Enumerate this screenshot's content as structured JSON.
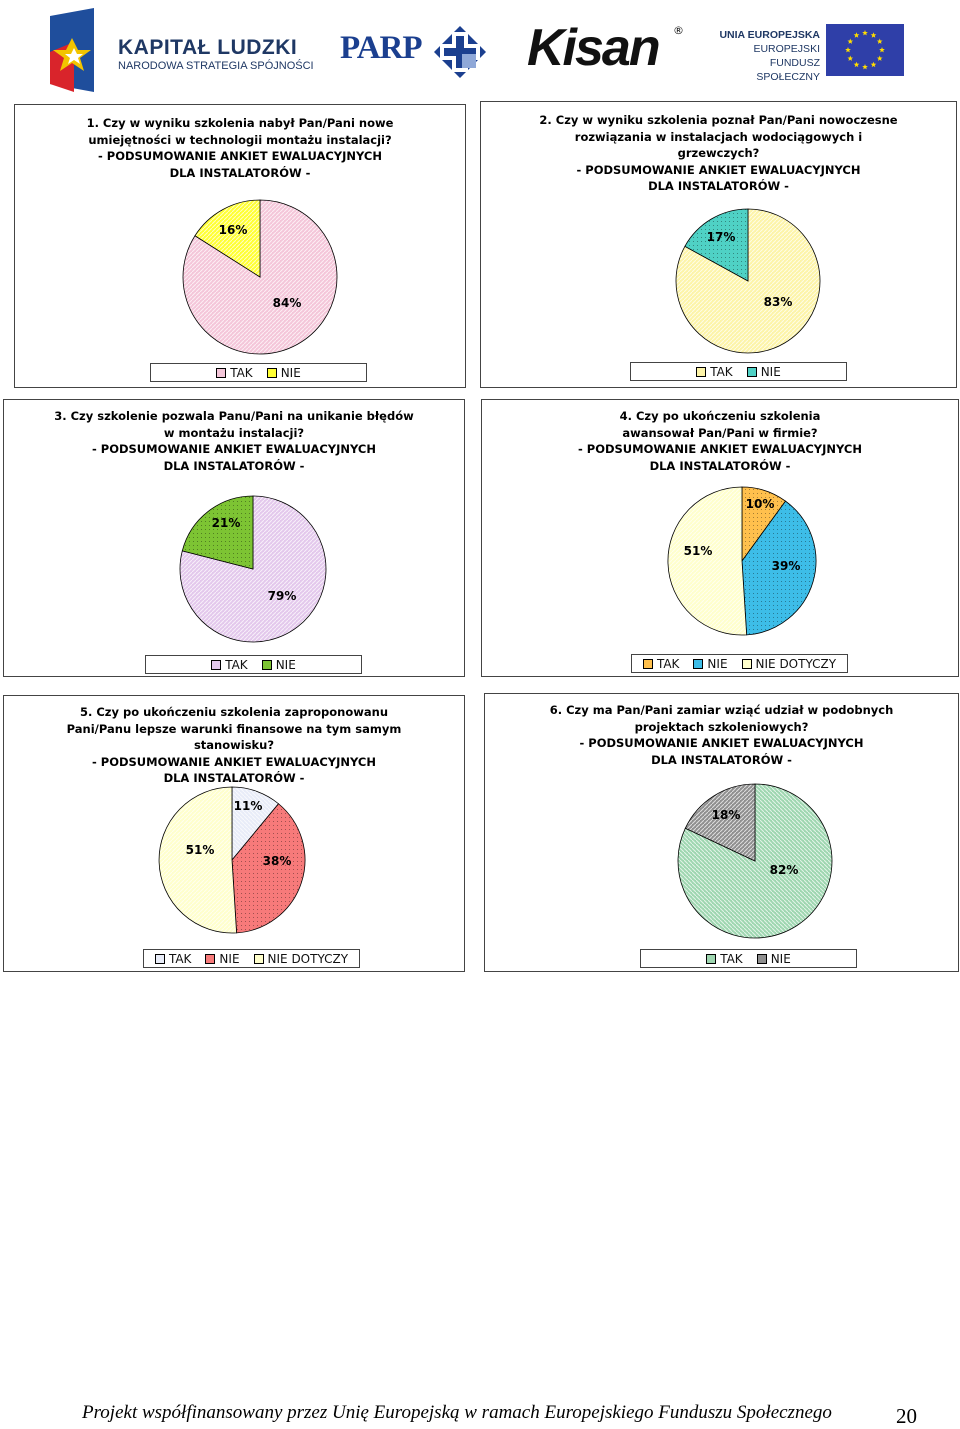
{
  "header": {
    "kl_title": "KAPITAŁ LUDZKI",
    "kl_subtitle": "NARODOWA STRATEGIA SPÓJNOŚCI",
    "parp": "PARP",
    "kisan": "Kisan",
    "kisan_mark": "®",
    "ue_line1": "UNIA EUROPEJSKA",
    "ue_line2": "EUROPEJSKI",
    "ue_line3": "FUNDUSZ SPOŁECZNY"
  },
  "footer": {
    "text": "Projekt współfinansowany przez Unię Europejską w ramach Europejskiego Funduszu Społecznego",
    "page_number": "20"
  },
  "colors": {
    "pink": "#f4c6d9",
    "yellow": "#ffff33",
    "cream": "#fdf4a8",
    "teal": "#4fd1c5",
    "lavender": "#e3c8ec",
    "green": "#7dc433",
    "light_yellow": "#ffffcc",
    "orange": "#ffc04d",
    "blue": "#3dbde8",
    "pale_blue": "#e8ecf8",
    "salmon": "#f77a7a",
    "seagreen": "#9ed6b0",
    "gray": "#8f8f8f"
  },
  "chart_data": [
    {
      "type": "pie",
      "title_lines": [
        "1. Czy w wyniku szkolenia nabył Pan/Pani nowe",
        "umiejętności w technologii montażu instalacji?",
        "- PODSUMOWANIE ANKIET EWALUACYJNYCH",
        "DLA INSTALATORÓW -"
      ],
      "slices": [
        {
          "label": "TAK",
          "value": 84,
          "text": "84%",
          "color": "#f4c6d9"
        },
        {
          "label": "NIE",
          "value": 16,
          "text": "16%",
          "color": "#ffff33"
        }
      ],
      "legend": "bottom"
    },
    {
      "type": "pie",
      "title_lines": [
        "2. Czy w wyniku szkolenia poznał Pan/Pani nowoczesne",
        "rozwiązania w instalacjach wodociągowych i",
        "grzewczych?",
        "- PODSUMOWANIE ANKIET EWALUACYJNYCH",
        "DLA INSTALATORÓW -"
      ],
      "slices": [
        {
          "label": "TAK",
          "value": 83,
          "text": "83%",
          "color": "#fdf4a8"
        },
        {
          "label": "NIE",
          "value": 17,
          "text": "17%",
          "color": "#4fd1c5"
        }
      ],
      "legend": "bottom"
    },
    {
      "type": "pie",
      "title_lines": [
        "3. Czy szkolenie pozwala Panu/Pani na unikanie błędów",
        "w montażu instalacji?",
        "- PODSUMOWANIE ANKIET EWALUACYJNYCH",
        "DLA INSTALATORÓW -"
      ],
      "slices": [
        {
          "label": "TAK",
          "value": 79,
          "text": "79%",
          "color": "#e3c8ec"
        },
        {
          "label": "NIE",
          "value": 21,
          "text": "21%",
          "color": "#7dc433"
        }
      ],
      "legend": "bottom"
    },
    {
      "type": "pie",
      "title_lines": [
        "4. Czy po ukończeniu szkolenia",
        "awansował Pan/Pani w firmie?",
        "- PODSUMOWANIE ANKIET EWALUACYJNYCH",
        "DLA INSTALATORÓW -"
      ],
      "slices": [
        {
          "label": "TAK",
          "value": 10,
          "text": "10%",
          "color": "#ffc04d"
        },
        {
          "label": "NIE",
          "value": 39,
          "text": "39%",
          "color": "#3dbde8"
        },
        {
          "label": "NIE DOTYCZY",
          "value": 51,
          "text": "51%",
          "color": "#ffffcc"
        }
      ],
      "legend": "bottom"
    },
    {
      "type": "pie",
      "title_lines": [
        "5. Czy po ukończeniu szkolenia zaproponowanu",
        "Pani/Panu lepsze warunki finansowe na tym samym",
        "stanowisku?",
        "- PODSUMOWANIE ANKIET EWALUACYJNYCH",
        "DLA INSTALATORÓW -"
      ],
      "slices": [
        {
          "label": "TAK",
          "value": 11,
          "text": "11%",
          "color": "#e8ecf8"
        },
        {
          "label": "NIE",
          "value": 38,
          "text": "38%",
          "color": "#f77a7a"
        },
        {
          "label": "NIE DOTYCZY",
          "value": 51,
          "text": "51%",
          "color": "#ffffcc"
        }
      ],
      "legend": "bottom"
    },
    {
      "type": "pie",
      "title_lines": [
        "6. Czy ma Pan/Pani zamiar wziąć udział w podobnych",
        "projektach szkoleniowych?",
        "- PODSUMOWANIE ANKIET EWALUACYJNYCH",
        "DLA INSTALATORÓW -"
      ],
      "slices": [
        {
          "label": "TAK",
          "value": 82,
          "text": "82%",
          "color": "#9ed6b0"
        },
        {
          "label": "NIE",
          "value": 18,
          "text": "18%",
          "color": "#8f8f8f"
        }
      ],
      "legend": "bottom"
    }
  ]
}
